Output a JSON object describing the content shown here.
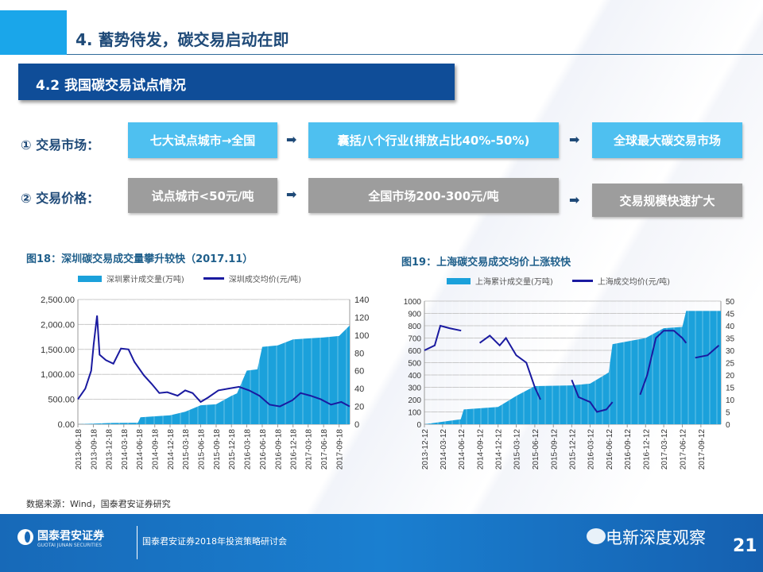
{
  "header": {
    "title": "4. 蓄势待发，碳交易启动在即",
    "subtitle": "4.2 我国碳交易试点情况"
  },
  "rows": [
    {
      "label": "① 交易市场：",
      "steps": [
        "七大试点城市→全国",
        "囊括八个行业(排放占比40%-50%)",
        "全球最大碳交易市场"
      ]
    },
    {
      "label": "② 交易价格：",
      "steps": [
        "试点城市<50元/吨",
        "全国市场200-300元/吨",
        "交易规模快速扩大"
      ]
    }
  ],
  "arrow_glyph": "➡",
  "colors": {
    "accent": "#1aa6ea",
    "dark_blue": "#0f4d98",
    "step_blue": "#4ec0f0",
    "step_gray": "#9d9d9d",
    "bar": "#1ba1db",
    "line": "#1a1aa0"
  },
  "chart_data": [
    {
      "type": "bar+line",
      "title": "图18：深圳碳交易成交量攀升较快（2017.11）",
      "legend": [
        "深圳累计成交量(万吨)",
        "深圳成交均价(元/吨)"
      ],
      "legend_position": "top",
      "y_left": {
        "ticks": [
          "0.00",
          "500.00",
          "1,000.00",
          "1,500.00",
          "2,000.00",
          "2,500.00"
        ],
        "lim": [
          0,
          2500
        ]
      },
      "y_right": {
        "ticks": [
          "0",
          "20",
          "40",
          "60",
          "80",
          "100",
          "120",
          "140"
        ],
        "lim": [
          0,
          140
        ]
      },
      "xlim": [
        "2013-06-18",
        "2017-11-20"
      ],
      "x_ticks": [
        "2013-06-18",
        "2013-09-18",
        "2013-12-18",
        "2014-03-18",
        "2014-06-18",
        "2014-09-18",
        "2014-12-18",
        "2015-03-18",
        "2015-06-18",
        "2015-09-18",
        "2015-12-18",
        "2016-03-18",
        "2016-06-18",
        "2016-09-18",
        "2016-12-18",
        "2017-03-18",
        "2017-06-18",
        "2017-09-18"
      ],
      "grid": true,
      "volume": {
        "x": [
          "2013-06-18",
          "2013-09-01",
          "2014-01-01",
          "2014-06-10",
          "2014-06-25",
          "2014-12-18",
          "2015-03-18",
          "2015-06-18",
          "2015-09-18",
          "2015-12-18",
          "2016-01-20",
          "2016-03-18",
          "2016-05-20",
          "2016-06-18",
          "2016-09-18",
          "2016-12-18",
          "2017-06-18",
          "2017-09-18",
          "2017-11-20"
        ],
        "values": [
          0,
          10,
          25,
          30,
          140,
          180,
          250,
          380,
          400,
          570,
          620,
          1075,
          1100,
          1550,
          1580,
          1700,
          1740,
          1770,
          1980
        ]
      },
      "price": {
        "x": [
          "2013-06-18",
          "2013-08-01",
          "2013-09-05",
          "2013-09-20",
          "2013-10-10",
          "2013-10-25",
          "2013-12-01",
          "2014-01-15",
          "2014-03-01",
          "2014-04-15",
          "2014-05-20",
          "2014-07-15",
          "2014-09-01",
          "2014-10-15",
          "2014-12-01",
          "2015-02-01",
          "2015-03-18",
          "2015-05-01",
          "2015-06-18",
          "2015-08-01",
          "2015-10-01",
          "2015-12-01",
          "2016-02-01",
          "2016-04-01",
          "2016-06-01",
          "2016-08-01",
          "2016-10-01",
          "2016-12-15",
          "2017-02-01",
          "2017-04-01",
          "2017-06-01",
          "2017-08-01",
          "2017-10-01",
          "2017-11-20"
        ],
        "values": [
          28,
          40,
          60,
          90,
          122,
          78,
          72,
          68,
          85,
          84,
          70,
          55,
          45,
          35,
          36,
          32,
          38,
          35,
          25,
          30,
          38,
          40,
          42,
          38,
          32,
          22,
          20,
          27,
          35,
          32,
          28,
          22,
          25,
          20
        ]
      }
    },
    {
      "type": "bar+line",
      "title": "图19：上海碳交易成交均价上涨较快",
      "legend": [
        "上海累计成交量(万吨)",
        "上海成交均价(元/吨)"
      ],
      "legend_position": "top",
      "y_left": {
        "ticks": [
          "0",
          "100",
          "200",
          "300",
          "400",
          "500",
          "600",
          "700",
          "800",
          "900",
          "1000"
        ],
        "lim": [
          0,
          1000
        ]
      },
      "y_right": {
        "ticks": [
          "0",
          "5",
          "10",
          "15",
          "20",
          "25",
          "30",
          "35",
          "40",
          "45",
          "50"
        ],
        "lim": [
          0,
          50
        ]
      },
      "xlim": [
        "2013-12-12",
        "2017-12-20"
      ],
      "x_ticks": [
        "2013-12-12",
        "2014-03-12",
        "2014-06-12",
        "2014-09-12",
        "2014-12-12",
        "2015-03-12",
        "2015-06-12",
        "2015-09-12",
        "2015-12-12",
        "2016-03-12",
        "2016-06-12",
        "2016-09-12",
        "2016-12-12",
        "2017-03-12",
        "2017-06-12",
        "2017-09-12"
      ],
      "grid": true,
      "volume": {
        "x": [
          "2013-12-12",
          "2014-03-12",
          "2014-06-10",
          "2014-06-25",
          "2014-12-12",
          "2015-03-12",
          "2015-06-12",
          "2015-12-12",
          "2016-03-12",
          "2016-06-12",
          "2016-07-01",
          "2016-12-12",
          "2017-03-12",
          "2017-06-12",
          "2017-07-01",
          "2017-12-20"
        ],
        "values": [
          0,
          20,
          40,
          120,
          140,
          230,
          310,
          315,
          330,
          420,
          650,
          700,
          780,
          790,
          920,
          920
        ]
      },
      "price": {
        "x": [
          "2013-12-12",
          "2014-02-01",
          "2014-03-01",
          "2014-04-15",
          "2014-06-12",
          "2014-07-01",
          "2014-09-12",
          "2014-11-01",
          "2014-12-20",
          "2015-01-20",
          "2015-03-12",
          "2015-05-01",
          "2015-06-12",
          "2015-07-10",
          "2015-08-01",
          "2015-12-12",
          "2016-01-15",
          "2016-03-12",
          "2016-04-15",
          "2016-06-01",
          "2016-07-01",
          "2016-08-01",
          "2016-11-15",
          "2016-12-20",
          "2017-02-01",
          "2017-03-12",
          "2017-05-01",
          "2017-06-12",
          "2017-07-01",
          "2017-07-20",
          "2017-08-15",
          "2017-10-15",
          "2017-12-10"
        ],
        "values": [
          30,
          32,
          40,
          39,
          38,
          null,
          33,
          36,
          32,
          35,
          28,
          25,
          15,
          10,
          null,
          18,
          11,
          9,
          5,
          6,
          9,
          null,
          12,
          20,
          35,
          38,
          38,
          35,
          33,
          null,
          27,
          28,
          32
        ]
      }
    }
  ],
  "source": "数据来源：Wind，国泰君安证券研究",
  "footer": {
    "brand": "国泰君安证券",
    "brand_en": "GUOTAI JUNAN SECURITIES",
    "event": "国泰君安证券2018年投资策略研讨会",
    "watermark": "电新深度观察",
    "page": "21"
  }
}
